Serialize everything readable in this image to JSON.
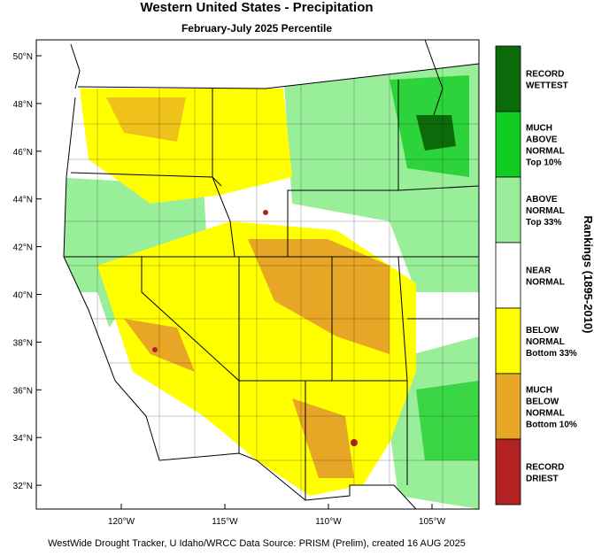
{
  "map": {
    "title": "Western United States - Precipitation",
    "subtitle": "February-July 2025 Percentile",
    "lat_labels": [
      "50°N",
      "48°N",
      "46°N",
      "44°N",
      "42°N",
      "40°N",
      "38°N",
      "36°N",
      "34°N",
      "32°N"
    ],
    "lon_labels": [
      "120°W",
      "115°W",
      "110°W",
      "105°W"
    ]
  },
  "legend": {
    "title": "Rankings (1895-2010)",
    "items": [
      {
        "lines": [
          "RECORD",
          "WETTEST"
        ],
        "color": "#0b6b0b"
      },
      {
        "lines": [
          "MUCH",
          "ABOVE",
          "NORMAL",
          "Top 10%"
        ],
        "color": "#11cc22"
      },
      {
        "lines": [
          "ABOVE",
          "NORMAL",
          "Top 33%"
        ],
        "color": "#99ee99"
      },
      {
        "lines": [
          "NEAR",
          "NORMAL"
        ],
        "color": "#ffffff"
      },
      {
        "lines": [
          "BELOW",
          "NORMAL",
          "Bottom 33%"
        ],
        "color": "#ffff00"
      },
      {
        "lines": [
          "MUCH",
          "BELOW",
          "NORMAL",
          "Bottom 10%"
        ],
        "color": "#e8a626"
      },
      {
        "lines": [
          "RECORD",
          "DRIEST"
        ],
        "color": "#b22222"
      }
    ]
  },
  "footer": "WestWide Drought Tracker, U Idaho/WRCC Data Source: PRISM (Prelim), created 16 AUG 2025"
}
